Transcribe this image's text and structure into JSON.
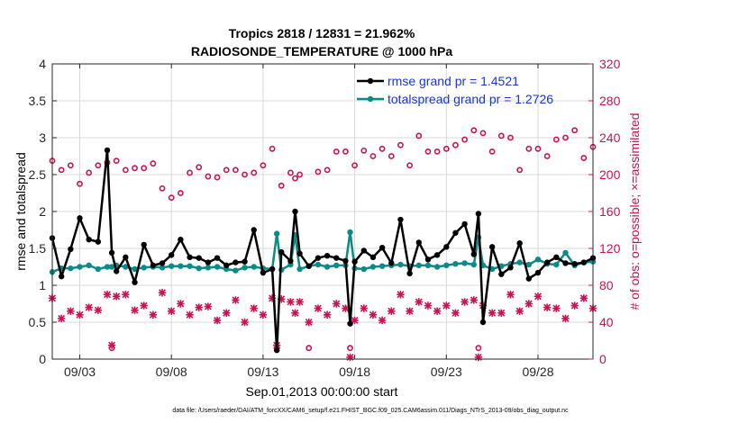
{
  "chart_data": {
    "type": "line",
    "title": "Tropics 2818 / 12831 = 21.962%",
    "subtitle": "RADIOSONDE_TEMPERATURE @ 1000 hPa",
    "xlabel": "Sep.01,2013 00:00:00 start",
    "ylabel": "rmse and totalspread",
    "y2label": "# of obs: o=possible; ×=assimilated",
    "footer": "data file: /Users/raeder/DAI/ATM_forcXX/CAM6_setup/f.e21.FHIST_BGC.f09_025.CAM6assim.011/Diags_NTrS_2013-09/obs_diag_output.nc",
    "xlim": [
      1.5,
      31
    ],
    "ylim": [
      0,
      4
    ],
    "y2lim": [
      0,
      320
    ],
    "x_ticks": [
      3,
      8,
      13,
      18,
      23,
      28
    ],
    "x_tick_labels": [
      "09/03",
      "09/08",
      "09/13",
      "09/18",
      "09/23",
      "09/28"
    ],
    "y_ticks": [
      0,
      0.5,
      1,
      1.5,
      2,
      2.5,
      3,
      3.5,
      4
    ],
    "y_tick_labels": [
      "0",
      "0.5",
      "1",
      "1.5",
      "2",
      "2.5",
      "3",
      "3.5",
      "4"
    ],
    "y2_ticks": [
      0,
      40,
      80,
      120,
      160,
      200,
      240,
      280,
      320
    ],
    "y2_tick_labels": [
      "0",
      "40",
      "80",
      "120",
      "160",
      "200",
      "240",
      "280",
      "320"
    ],
    "legend_position": "top-right",
    "colors": {
      "rmse": "#000000",
      "spread": "#0b8a87",
      "obs": "#cc1155",
      "legend_text": "#1a35d6"
    },
    "series": [
      {
        "name": "rmse grand pr = 1.4521",
        "x": [
          1.5,
          2,
          2.5,
          3,
          3.5,
          4,
          4.5,
          4.75,
          5,
          5.5,
          6,
          6.5,
          7,
          7.5,
          8,
          8.5,
          9,
          9.5,
          10,
          10.5,
          11,
          11.5,
          12,
          12.5,
          13,
          13.5,
          13.75,
          14,
          14.5,
          14.75,
          15,
          15.5,
          16,
          16.5,
          17,
          17.5,
          17.75,
          18,
          18.5,
          19,
          19.5,
          20,
          20.5,
          21,
          21.5,
          22,
          22.5,
          23,
          23.5,
          24,
          24.5,
          24.75,
          25,
          25.5,
          26,
          26.5,
          27,
          27.5,
          28,
          28.5,
          29,
          29.5,
          30,
          30.5,
          31
        ],
        "values": [
          1.64,
          1.12,
          1.49,
          1.91,
          1.62,
          1.59,
          2.83,
          1.44,
          1.19,
          1.38,
          1.04,
          1.55,
          1.27,
          1.3,
          1.41,
          1.62,
          1.38,
          1.37,
          1.31,
          1.37,
          1.27,
          1.31,
          1.32,
          1.75,
          1.17,
          1.22,
          0.12,
          1.45,
          1.33,
          2.0,
          1.43,
          1.26,
          1.37,
          1.4,
          1.37,
          1.33,
          0.48,
          1.32,
          1.47,
          1.38,
          1.51,
          1.3,
          1.89,
          1.16,
          1.58,
          1.35,
          1.41,
          1.52,
          1.71,
          1.83,
          1.42,
          1.97,
          0.5,
          1.52,
          1.15,
          1.24,
          1.57,
          1.09,
          1.17,
          1.31,
          1.38,
          1.3,
          1.29,
          1.31,
          1.37
        ]
      },
      {
        "name": "totalspread grand pr = 1.2726",
        "x": [
          1.5,
          2,
          2.5,
          3,
          3.5,
          4,
          4.5,
          4.75,
          5,
          5.5,
          6,
          6.5,
          7,
          7.5,
          8,
          8.5,
          9,
          9.5,
          10,
          10.5,
          11,
          11.5,
          12,
          12.5,
          13,
          13.5,
          13.75,
          14,
          14.5,
          14.75,
          15,
          15.5,
          16,
          16.5,
          17,
          17.5,
          17.75,
          18,
          18.5,
          19,
          19.5,
          20,
          20.5,
          21,
          21.5,
          22,
          22.5,
          23,
          23.5,
          24,
          24.5,
          24.75,
          25,
          25.5,
          26,
          26.5,
          27,
          27.5,
          28,
          28.5,
          29,
          29.5,
          30,
          30.5,
          31
        ],
        "values": [
          1.18,
          1.23,
          1.23,
          1.25,
          1.27,
          1.22,
          1.25,
          1.25,
          1.27,
          1.25,
          1.22,
          1.24,
          1.25,
          1.24,
          1.26,
          1.26,
          1.26,
          1.23,
          1.24,
          1.25,
          1.22,
          1.2,
          1.24,
          1.25,
          1.23,
          1.22,
          1.7,
          1.21,
          1.28,
          1.68,
          1.22,
          1.26,
          1.28,
          1.25,
          1.27,
          1.27,
          1.72,
          1.23,
          1.22,
          1.25,
          1.26,
          1.27,
          1.28,
          1.26,
          1.27,
          1.27,
          1.25,
          1.27,
          1.29,
          1.3,
          1.28,
          1.65,
          1.27,
          1.22,
          1.26,
          1.29,
          1.31,
          1.28,
          1.35,
          1.29,
          1.28,
          1.44,
          1.27,
          1.31,
          1.32
        ]
      },
      {
        "name": "possible",
        "x": [
          1.5,
          2,
          2.5,
          3,
          3.5,
          4,
          4.5,
          4.75,
          5,
          5.5,
          6,
          6.5,
          7,
          7.5,
          8,
          8.5,
          9,
          9.5,
          10,
          10.5,
          11,
          11.5,
          12,
          12.5,
          13,
          13.5,
          13.75,
          14,
          14.5,
          14.75,
          15,
          15.5,
          16,
          16.5,
          17,
          17.5,
          17.75,
          18,
          18.5,
          19,
          19.5,
          20,
          20.5,
          21,
          21.5,
          22,
          22.5,
          23,
          23.5,
          24,
          24.5,
          24.75,
          25,
          25.5,
          26,
          26.5,
          27,
          27.5,
          28,
          28.5,
          29,
          29.5,
          30,
          30.5,
          31
        ],
        "values": [
          215,
          205,
          210,
          190,
          202,
          210,
          213,
          12,
          215,
          205,
          207,
          207,
          212,
          185,
          175,
          180,
          202,
          208,
          198,
          197,
          205,
          205,
          200,
          202,
          210,
          228,
          12,
          188,
          202,
          196,
          200,
          12,
          203,
          205,
          225,
          225,
          12,
          210,
          226,
          220,
          228,
          220,
          232,
          210,
          242,
          225,
          225,
          228,
          232,
          238,
          248,
          12,
          245,
          225,
          242,
          240,
          205,
          228,
          228,
          220,
          238,
          240,
          248,
          218,
          230
        ]
      },
      {
        "name": "assimilated",
        "x": [
          1.5,
          2,
          2.5,
          3,
          3.5,
          4,
          4.5,
          4.75,
          5,
          5.5,
          6,
          6.5,
          7,
          7.5,
          8,
          8.5,
          9,
          9.5,
          10,
          10.5,
          11,
          11.5,
          12,
          12.5,
          13,
          13.5,
          13.75,
          14,
          14.5,
          14.75,
          15,
          15.5,
          16,
          16.5,
          17,
          17.5,
          17.75,
          18,
          18.5,
          19,
          19.5,
          20,
          20.5,
          21,
          21.5,
          22,
          22.5,
          23,
          23.5,
          24,
          24.5,
          24.75,
          25,
          25.5,
          26,
          26.5,
          27,
          27.5,
          28,
          28.5,
          29,
          29.5,
          30,
          30.5,
          31
        ],
        "values": [
          66,
          44,
          52,
          48,
          56,
          53,
          70,
          15,
          68,
          70,
          53,
          58,
          48,
          72,
          52,
          60,
          48,
          56,
          57,
          42,
          50,
          64,
          40,
          55,
          48,
          66,
          15,
          65,
          62,
          50,
          62,
          40,
          55,
          48,
          60,
          55,
          2,
          42,
          55,
          48,
          42,
          52,
          70,
          52,
          62,
          58,
          52,
          58,
          50,
          62,
          64,
          2,
          58,
          50,
          50,
          70,
          52,
          60,
          68,
          56,
          55,
          44,
          58,
          66,
          55
        ]
      }
    ]
  }
}
